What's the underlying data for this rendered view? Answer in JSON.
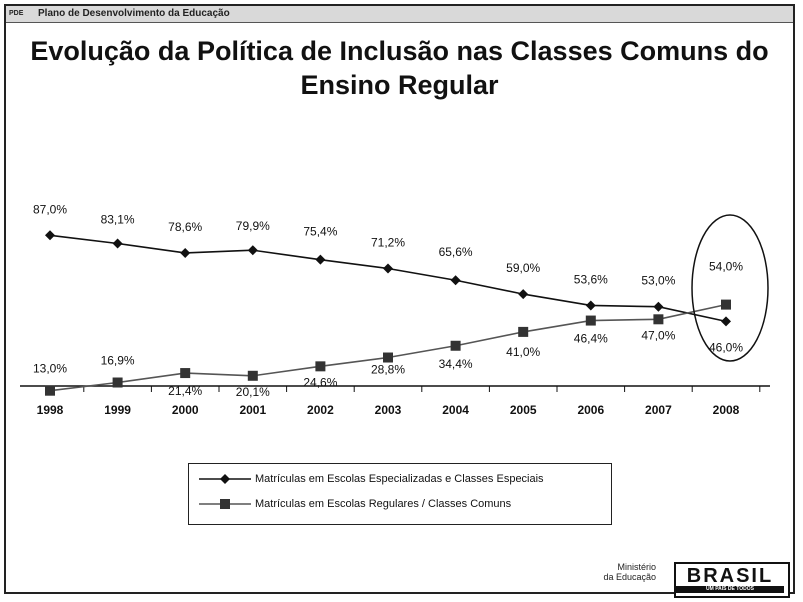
{
  "header": {
    "logo_text": "PDE",
    "title": "Plano de Desenvolvimento da Educação"
  },
  "slide_title": "Evolução da Política de Inclusão nas Classes Comuns do Ensino Regular",
  "colors": {
    "line": "#111111",
    "secondary_line": "#555555",
    "frame": "#222222"
  },
  "chart_data": {
    "type": "line",
    "categories": [
      "1998",
      "1999",
      "2000",
      "2001",
      "2002",
      "2003",
      "2004",
      "2005",
      "2006",
      "2007",
      "2008"
    ],
    "series": [
      {
        "name": "Matrículas em Escolas Especializadas e Classes Especiais",
        "marker": "diamond",
        "values": [
          87.0,
          83.1,
          78.6,
          79.9,
          75.4,
          71.2,
          65.6,
          59.0,
          53.6,
          53.0,
          46.0
        ],
        "labels": [
          "87,0%",
          "83,1%",
          "78,6%",
          "79,9%",
          "75,4%",
          "71,2%",
          "65,6%",
          "59,0%",
          "53,6%",
          "53,0%",
          "46,0%"
        ]
      },
      {
        "name": "Matrículas em Escolas Regulares / Classes Comuns",
        "marker": "square",
        "values": [
          13.0,
          16.9,
          21.4,
          20.1,
          24.6,
          28.8,
          34.4,
          41.0,
          46.4,
          47.0,
          54.0
        ],
        "labels": [
          "13,0%",
          "16,9%",
          "21,4%",
          "20,1%",
          "24,6%",
          "28,8%",
          "34,4%",
          "41,0%",
          "46,4%",
          "47,0%",
          "54,0%"
        ]
      }
    ],
    "ylim": [
      0,
      100
    ],
    "grid": false,
    "legend": "bottom",
    "annotation": "ellipse around 2008"
  },
  "footer": {
    "ministry_line1": "Ministério",
    "ministry_line2": "da Educação",
    "brand": "BRASIL",
    "slogan": "UM PAÍS DE TODOS"
  }
}
